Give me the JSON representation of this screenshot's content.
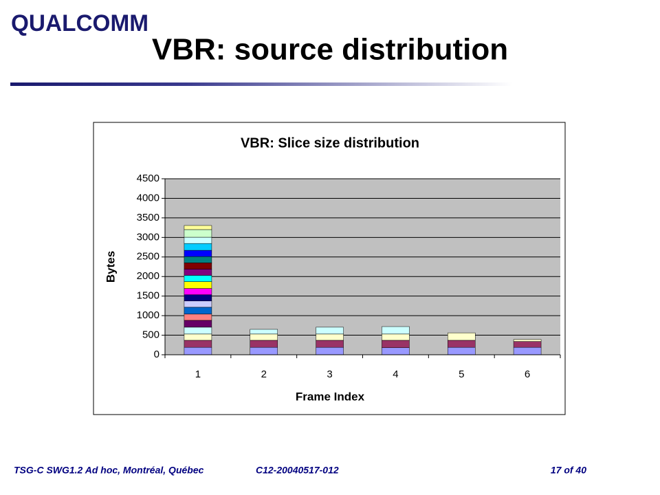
{
  "logo": "QUALCOMM",
  "slide_title": "VBR: source distribution",
  "footer": {
    "left": "TSG-C SWG1.2 Ad hoc, Montréal, Québec",
    "center": "C12-20040517-012",
    "right": "17 of 40"
  },
  "chart_data": {
    "type": "stacked_bar",
    "title": "VBR: Slice size distribution",
    "x_label": "Frame Index",
    "y_label": "Bytes",
    "categories": [
      "1",
      "2",
      "3",
      "4",
      "5",
      "6"
    ],
    "ylim": [
      0,
      4500
    ],
    "yticks": [
      0,
      500,
      1000,
      1500,
      2000,
      2500,
      3000,
      3500,
      4000,
      4500
    ],
    "grid": true,
    "series": [
      {
        "color": "#9999FF",
        "values": [
          190,
          190,
          190,
          180,
          190,
          190
        ]
      },
      {
        "color": "#993366",
        "values": [
          180,
          180,
          180,
          190,
          180,
          150
        ]
      },
      {
        "color": "#FFFFCC",
        "values": [
          160,
          160,
          160,
          160,
          190,
          50
        ]
      },
      {
        "color": "#CCFFFF",
        "values": [
          175,
          120,
          175,
          190,
          null,
          null
        ]
      },
      {
        "color": "#660066",
        "values": [
          175,
          null,
          null,
          null,
          null,
          null
        ]
      },
      {
        "color": "#FF8080",
        "values": [
          160,
          null,
          null,
          null,
          null,
          null
        ]
      },
      {
        "color": "#0066CC",
        "values": [
          175,
          null,
          null,
          null,
          null,
          null
        ]
      },
      {
        "color": "#CCCCFF",
        "values": [
          160,
          null,
          null,
          null,
          null,
          null
        ]
      },
      {
        "color": "#000080",
        "values": [
          160,
          null,
          null,
          null,
          null,
          null
        ]
      },
      {
        "color": "#FF00FF",
        "values": [
          160,
          null,
          null,
          null,
          null,
          null
        ]
      },
      {
        "color": "#FFFF00",
        "values": [
          175,
          null,
          null,
          null,
          null,
          null
        ]
      },
      {
        "color": "#00FFFF",
        "values": [
          160,
          null,
          null,
          null,
          null,
          null
        ]
      },
      {
        "color": "#800080",
        "values": [
          160,
          null,
          null,
          null,
          null,
          null
        ]
      },
      {
        "color": "#800000",
        "values": [
          160,
          null,
          null,
          null,
          null,
          null
        ]
      },
      {
        "color": "#008080",
        "values": [
          160,
          null,
          null,
          null,
          null,
          null
        ]
      },
      {
        "color": "#0000FF",
        "values": [
          160,
          null,
          null,
          null,
          null,
          null
        ]
      },
      {
        "color": "#00CCFF",
        "values": [
          175,
          null,
          null,
          null,
          null,
          null
        ]
      },
      {
        "color": "#CCFFFF",
        "values": [
          160,
          null,
          null,
          null,
          null,
          null
        ]
      },
      {
        "color": "#CCFFCC",
        "values": [
          195,
          null,
          null,
          null,
          null,
          null
        ]
      },
      {
        "color": "#FFFF99",
        "values": [
          105,
          null,
          null,
          null,
          null,
          null
        ]
      }
    ]
  }
}
